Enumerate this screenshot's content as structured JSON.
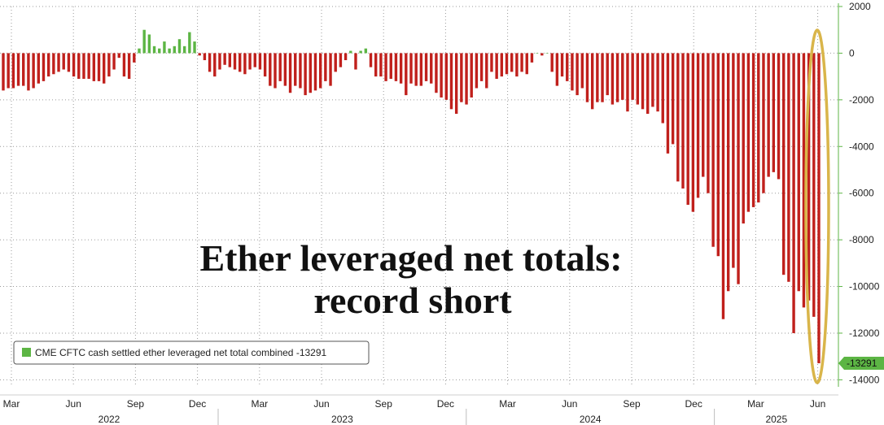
{
  "chart_data": {
    "type": "bar",
    "title_lines": [
      "Ether leveraged net totals:",
      "record short"
    ],
    "legend": {
      "label": "CME CFTC cash settled ether leveraged net total combined -13291",
      "color": "#5cb544"
    },
    "positive_color": "#5cb544",
    "negative_color": "#c0201c",
    "highlight_color": "#d9b54a",
    "last_value": -13291,
    "last_value_label": "-13291",
    "ylim": [
      -14300,
      2000
    ],
    "yticks": [
      2000,
      0,
      -2000,
      -4000,
      -6000,
      -8000,
      -10000,
      -12000,
      -14000
    ],
    "ytick_labels": [
      "2000",
      "0",
      "-2000",
      "-4000",
      "-6000",
      "-8000",
      "-10000",
      "-12000",
      "-14000"
    ],
    "xtick_labels": [
      "Mar",
      "Jun",
      "Sep",
      "Dec",
      "Mar",
      "Jun",
      "Sep",
      "Dec",
      "Mar",
      "Jun",
      "Sep",
      "Dec",
      "Mar",
      "Jun"
    ],
    "year_labels": [
      "2022",
      "2023",
      "2024",
      "2025"
    ],
    "values": [
      -1600,
      -1500,
      -1500,
      -1400,
      -1400,
      -1600,
      -1500,
      -1300,
      -1200,
      -1000,
      -900,
      -800,
      -700,
      -800,
      -1000,
      -1100,
      -1100,
      -1100,
      -1200,
      -1200,
      -1300,
      -1000,
      -700,
      -200,
      -1000,
      -1100,
      -400,
      200,
      1000,
      800,
      300,
      200,
      500,
      200,
      300,
      600,
      300,
      900,
      500,
      -100,
      -300,
      -800,
      -1000,
      -700,
      -500,
      -600,
      -700,
      -800,
      -900,
      -700,
      -600,
      -700,
      -1000,
      -1400,
      -1500,
      -1200,
      -1400,
      -1700,
      -1400,
      -1500,
      -1800,
      -1700,
      -1600,
      -1500,
      -1200,
      -1400,
      -800,
      -600,
      -300,
      100,
      -700,
      100,
      200,
      -600,
      -1000,
      -1000,
      -1200,
      -1100,
      -1200,
      -1300,
      -1800,
      -1300,
      -1400,
      -1400,
      -1200,
      -1300,
      -1700,
      -1900,
      -2000,
      -2400,
      -2600,
      -2100,
      -2200,
      -1900,
      -1500,
      -1200,
      -1500,
      -800,
      -1100,
      -1000,
      -900,
      -800,
      -1000,
      -800,
      -900,
      -400,
      0,
      -100,
      0,
      -800,
      -1400,
      -1000,
      -1200,
      -1600,
      -1800,
      -1500,
      -2100,
      -2400,
      -2100,
      -2100,
      -1800,
      -2200,
      -2100,
      -2000,
      -2500,
      -2000,
      -2200,
      -2400,
      -2600,
      -2300,
      -2500,
      -3000,
      -4300,
      -3900,
      -5500,
      -5800,
      -6500,
      -6800,
      -6200,
      -5300,
      -6000,
      -8300,
      -8700,
      -11400,
      -10200,
      -9200,
      -9900,
      -7300,
      -6800,
      -6600,
      -6400,
      -6000,
      -5300,
      -5100,
      -5400,
      -9500,
      -9800,
      -12000,
      -10200,
      -10900,
      -10600,
      -11300,
      -13291
    ]
  }
}
